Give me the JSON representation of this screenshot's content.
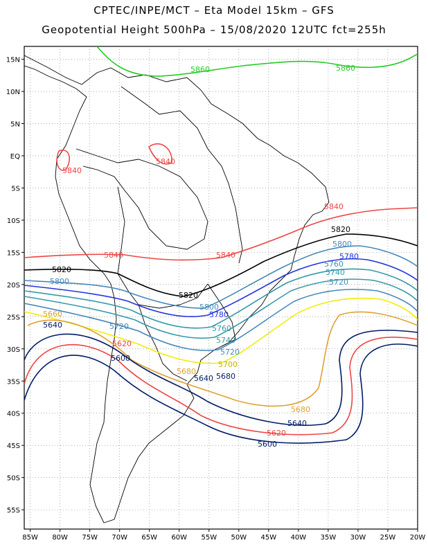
{
  "header": {
    "line1": "CPTEC/INPE/MCT –  Eta Model 15km – GFS",
    "line2": "Geopotential Height 500hPa – 15/08/2020 12UTC fct=255h"
  },
  "axes": {
    "lat_labels": [
      "15N",
      "10N",
      "5N",
      "EQ",
      "5S",
      "10S",
      "15S",
      "20S",
      "25S",
      "30S",
      "35S",
      "40S",
      "45S",
      "50S",
      "55S"
    ],
    "lat_values": [
      15,
      10,
      5,
      0,
      -5,
      -10,
      -15,
      -20,
      -25,
      -30,
      -35,
      -40,
      -45,
      -50,
      -55
    ],
    "lon_labels": [
      "85W",
      "80W",
      "75W",
      "70W",
      "65W",
      "60W",
      "55W",
      "50W",
      "45W",
      "40W",
      "35W",
      "30W",
      "25W",
      "20W"
    ],
    "lon_values": [
      -85,
      -80,
      -75,
      -70,
      -65,
      -60,
      -55,
      -50,
      -45,
      -40,
      -35,
      -30,
      -25,
      -20
    ],
    "lon_range": [
      -86,
      -20
    ],
    "lat_range": [
      -58,
      17
    ],
    "grid": "dotted"
  },
  "contours": [
    {
      "value": "5860",
      "color": "#22cc22"
    },
    {
      "value": "5840",
      "color": "#ee4444"
    },
    {
      "value": "5820",
      "color": "#000000"
    },
    {
      "value": "5800",
      "color": "#4488bb"
    },
    {
      "value": "5780",
      "color": "#2233dd"
    },
    {
      "value": "5760",
      "color": "#3399aa"
    },
    {
      "value": "5740",
      "color": "#3399aa"
    },
    {
      "value": "5720",
      "color": "#4488bb"
    },
    {
      "value": "5700",
      "color": "#eeee00"
    },
    {
      "value": "5680",
      "color": "#e0a030"
    },
    {
      "value": "5660",
      "color": "#e0a030"
    },
    {
      "value": "5640",
      "color": "#001a66"
    },
    {
      "value": "5620",
      "color": "#ee4444"
    },
    {
      "value": "5600",
      "color": "#001a66"
    }
  ]
}
